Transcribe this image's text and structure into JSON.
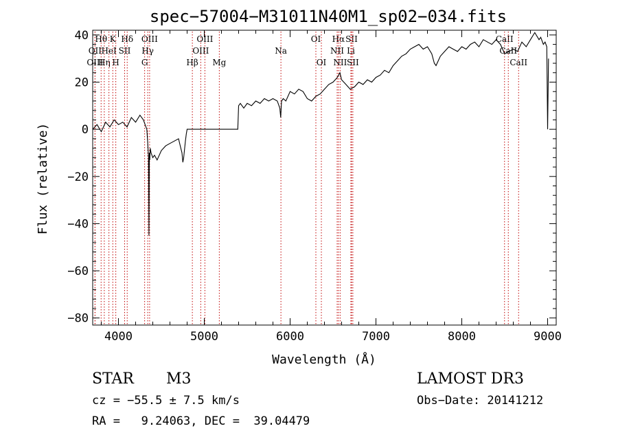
{
  "chart_data": {
    "type": "line",
    "title": "spec−57004−M31011N40M1_sp02−034.fits",
    "xlabel": "Wavelength (Å)",
    "ylabel": "Flux (relative)",
    "xlim": [
      3700,
      9100
    ],
    "ylim": [
      -83,
      42
    ],
    "xticks": [
      4000,
      5000,
      6000,
      7000,
      8000,
      9000
    ],
    "yticks": [
      -80,
      -60,
      -40,
      -20,
      0,
      20,
      40
    ],
    "ytick_labels": [
      "−80",
      "−60",
      "−40",
      "−20",
      "0",
      "20",
      "40"
    ],
    "series": [
      {
        "name": "spectrum",
        "x": [
          3700,
          3750,
          3800,
          3850,
          3900,
          3950,
          4000,
          4050,
          4100,
          4150,
          4200,
          4250,
          4290,
          4310,
          4330,
          4340,
          4350,
          4355,
          4360,
          4365,
          4370,
          4380,
          4400,
          4420,
          4450,
          4500,
          4550,
          4600,
          4650,
          4700,
          4720,
          4740,
          4750,
          4760,
          4780,
          4790,
          4800,
          5000,
          5200,
          5390,
          5400,
          5420,
          5460,
          5500,
          5550,
          5600,
          5650,
          5700,
          5750,
          5800,
          5850,
          5880,
          5890,
          5900,
          5920,
          5950,
          6000,
          6050,
          6100,
          6150,
          6200,
          6250,
          6300,
          6350,
          6400,
          6450,
          6500,
          6550,
          6580,
          6600,
          6650,
          6700,
          6750,
          6800,
          6850,
          6900,
          6950,
          7000,
          7050,
          7100,
          7150,
          7200,
          7250,
          7300,
          7350,
          7400,
          7450,
          7500,
          7550,
          7600,
          7650,
          7680,
          7700,
          7750,
          7800,
          7850,
          7900,
          7950,
          8000,
          8050,
          8100,
          8150,
          8200,
          8250,
          8300,
          8350,
          8400,
          8450,
          8500,
          8550,
          8600,
          8650,
          8700,
          8750,
          8800,
          8850,
          8900,
          8920,
          8950,
          8970,
          8990,
          9000,
          9010
        ],
        "y": [
          0,
          2,
          -1,
          3,
          1,
          4,
          2,
          3,
          1,
          5,
          3,
          6,
          4,
          2,
          0,
          -5,
          -12,
          -45,
          -10,
          -13,
          -8,
          -10,
          -12,
          -11,
          -13,
          -9,
          -7,
          -6,
          -5,
          -4,
          -7,
          -10,
          -14,
          -12,
          -5,
          -2,
          0,
          0,
          0,
          0,
          10,
          11,
          9,
          11,
          10,
          12,
          11,
          13,
          12,
          13,
          12,
          9,
          5,
          12,
          13,
          12,
          16,
          15,
          17,
          16,
          13,
          12,
          14,
          15,
          17,
          19,
          20,
          22,
          24,
          21,
          19,
          17,
          18,
          20,
          19,
          21,
          20,
          22,
          23,
          25,
          24,
          27,
          29,
          31,
          32,
          34,
          35,
          36,
          34,
          35,
          32,
          28,
          27,
          31,
          33,
          35,
          34,
          33,
          35,
          34,
          36,
          37,
          35,
          38,
          37,
          36,
          38,
          36,
          32,
          33,
          34,
          33,
          37,
          35,
          38,
          41,
          38,
          39,
          36,
          37,
          35,
          0,
          30
        ]
      }
    ],
    "spectral_lines": [
      {
        "label": "Hθ",
        "x": 3798,
        "row": 0
      },
      {
        "label": "OII",
        "x": 3727,
        "row": 1
      },
      {
        "label": "OIII",
        "x": 3727,
        "row": 2
      },
      {
        "label": "Hη",
        "x": 3835,
        "row": 2
      },
      {
        "label": "HeI",
        "x": 3889,
        "row": 1
      },
      {
        "label": "K",
        "x": 3934,
        "row": 0
      },
      {
        "label": "H",
        "x": 3969,
        "row": 2
      },
      {
        "label": "SII",
        "x": 4072,
        "row": 1
      },
      {
        "label": "Hδ",
        "x": 4102,
        "row": 0
      },
      {
        "label": "OIII",
        "x": 4363,
        "row": 0
      },
      {
        "label": "Hγ",
        "x": 4341,
        "row": 1
      },
      {
        "label": "G",
        "x": 4305,
        "row": 2
      },
      {
        "label": "Hβ",
        "x": 4861,
        "row": 2
      },
      {
        "label": "OIII",
        "x": 4959,
        "row": 1
      },
      {
        "label": "OIII",
        "x": 5007,
        "row": 0
      },
      {
        "label": "Mg",
        "x": 5175,
        "row": 2
      },
      {
        "label": "Na",
        "x": 5893,
        "row": 1
      },
      {
        "label": "OI",
        "x": 6300,
        "row": 0
      },
      {
        "label": "OI",
        "x": 6364,
        "row": 2
      },
      {
        "label": "Hα",
        "x": 6563,
        "row": 0
      },
      {
        "label": "NII",
        "x": 6548,
        "row": 1
      },
      {
        "label": "NII",
        "x": 6583,
        "row": 2
      },
      {
        "label": "SII",
        "x": 6716,
        "row": 0
      },
      {
        "label": "Li",
        "x": 6708,
        "row": 1
      },
      {
        "label": "SII",
        "x": 6731,
        "row": 2
      },
      {
        "label": "CaII",
        "x": 8498,
        "row": 0
      },
      {
        "label": "CaII",
        "x": 8542,
        "row": 1
      },
      {
        "label": "CaII",
        "x": 8662,
        "row": 2
      }
    ]
  },
  "info": {
    "object_class": "STAR",
    "subclass": "M3",
    "survey": "LAMOST DR3",
    "cz": "cz = −55.5 ± 7.5 km/s",
    "obs_date": "Obs−Date: 20141212",
    "radec": "RA =   9.24063, DEC =  39.04479"
  }
}
